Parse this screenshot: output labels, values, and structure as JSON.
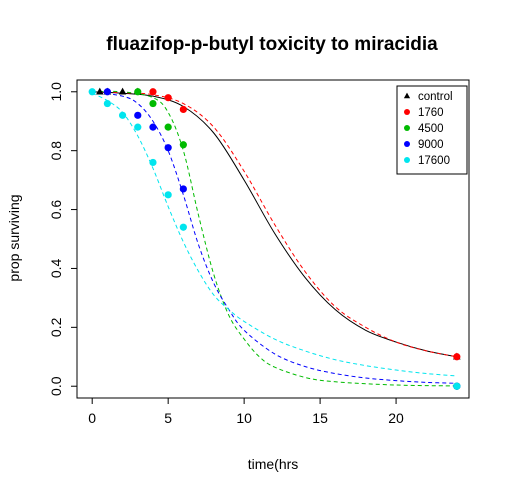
{
  "chart_data": {
    "type": "scatter",
    "title": "fluazifop-p-butyl toxicity to miracidia",
    "xlabel": "time(hrs",
    "ylabel": "prop surviving",
    "xlim": [
      -1,
      24.8
    ],
    "ylim": [
      -0.04,
      1.04
    ],
    "xticks": [
      0,
      5,
      10,
      15,
      20
    ],
    "yticks": [
      0.0,
      0.2,
      0.4,
      0.6,
      0.8,
      1.0
    ],
    "xtick_labels": [
      "0",
      "5",
      "10",
      "15",
      "20"
    ],
    "ytick_labels": [
      "0.0",
      "0.2",
      "0.4",
      "0.6",
      "0.8",
      "1.0"
    ],
    "legend_position": "top-right",
    "grid": false,
    "series": [
      {
        "name": "control",
        "color": "#000000",
        "marker": "triangle",
        "line_style": "solid",
        "points": [
          [
            0.5,
            1.0
          ],
          [
            1.0,
            1.0
          ],
          [
            2.0,
            1.0
          ],
          [
            3.0,
            1.0
          ],
          [
            24.0,
            0.1
          ]
        ],
        "fit_curve": [
          [
            0,
            1.0
          ],
          [
            2,
            0.995
          ],
          [
            4,
            0.985
          ],
          [
            6,
            0.95
          ],
          [
            8,
            0.86
          ],
          [
            10,
            0.7
          ],
          [
            12,
            0.52
          ],
          [
            14,
            0.37
          ],
          [
            16,
            0.26
          ],
          [
            18,
            0.19
          ],
          [
            20,
            0.15
          ],
          [
            22,
            0.12
          ],
          [
            24,
            0.1
          ]
        ]
      },
      {
        "name": "1760",
        "color": "#ff0000",
        "marker": "circle",
        "line_style": "dashed",
        "points": [
          [
            4.0,
            1.0
          ],
          [
            5.0,
            0.98
          ],
          [
            6.0,
            0.94
          ],
          [
            24.0,
            0.1
          ]
        ],
        "fit_curve": [
          [
            0,
            1.0
          ],
          [
            2,
            0.997
          ],
          [
            4,
            0.99
          ],
          [
            6,
            0.96
          ],
          [
            8,
            0.88
          ],
          [
            10,
            0.73
          ],
          [
            12,
            0.55
          ],
          [
            14,
            0.39
          ],
          [
            16,
            0.27
          ],
          [
            18,
            0.2
          ],
          [
            20,
            0.15
          ],
          [
            22,
            0.12
          ],
          [
            24,
            0.1
          ]
        ]
      },
      {
        "name": "4500",
        "color": "#00bb00",
        "marker": "circle",
        "line_style": "dashed",
        "points": [
          [
            3.0,
            1.0
          ],
          [
            4.0,
            0.96
          ],
          [
            5.0,
            0.88
          ],
          [
            6.0,
            0.82
          ],
          [
            24.0,
            0.0
          ]
        ],
        "fit_curve": [
          [
            0,
            1.0
          ],
          [
            2,
            1.0
          ],
          [
            4,
            0.98
          ],
          [
            5,
            0.93
          ],
          [
            6,
            0.8
          ],
          [
            7,
            0.58
          ],
          [
            8,
            0.38
          ],
          [
            9,
            0.24
          ],
          [
            10,
            0.16
          ],
          [
            11,
            0.1
          ],
          [
            12,
            0.065
          ],
          [
            14,
            0.03
          ],
          [
            16,
            0.015
          ],
          [
            20,
            0.004
          ],
          [
            24,
            0.001
          ]
        ]
      },
      {
        "name": "9000",
        "color": "#0000ff",
        "marker": "circle",
        "line_style": "dashed",
        "points": [
          [
            1.0,
            1.0
          ],
          [
            3.0,
            0.92
          ],
          [
            4.0,
            0.88
          ],
          [
            5.0,
            0.81
          ],
          [
            6.0,
            0.67
          ],
          [
            24.0,
            0.0
          ]
        ],
        "fit_curve": [
          [
            0,
            1.0
          ],
          [
            2,
            0.985
          ],
          [
            3,
            0.96
          ],
          [
            4,
            0.9
          ],
          [
            5,
            0.8
          ],
          [
            6,
            0.65
          ],
          [
            7,
            0.48
          ],
          [
            8,
            0.35
          ],
          [
            9,
            0.26
          ],
          [
            10,
            0.19
          ],
          [
            12,
            0.11
          ],
          [
            14,
            0.067
          ],
          [
            16,
            0.043
          ],
          [
            18,
            0.028
          ],
          [
            20,
            0.019
          ],
          [
            22,
            0.013
          ],
          [
            24,
            0.01
          ]
        ]
      },
      {
        "name": "17600",
        "color": "#00e5ee",
        "marker": "circle",
        "line_style": "dashed",
        "points": [
          [
            0.0,
            1.0
          ],
          [
            1.0,
            0.96
          ],
          [
            2.0,
            0.92
          ],
          [
            3.0,
            0.88
          ],
          [
            4.0,
            0.76
          ],
          [
            5.0,
            0.65
          ],
          [
            6.0,
            0.54
          ],
          [
            24.0,
            0.0
          ]
        ],
        "fit_curve": [
          [
            0,
            0.995
          ],
          [
            1,
            0.97
          ],
          [
            2,
            0.93
          ],
          [
            3,
            0.85
          ],
          [
            4,
            0.74
          ],
          [
            5,
            0.61
          ],
          [
            6,
            0.49
          ],
          [
            7,
            0.39
          ],
          [
            8,
            0.31
          ],
          [
            9,
            0.26
          ],
          [
            10,
            0.22
          ],
          [
            12,
            0.16
          ],
          [
            14,
            0.12
          ],
          [
            16,
            0.09
          ],
          [
            18,
            0.07
          ],
          [
            20,
            0.055
          ],
          [
            22,
            0.043
          ],
          [
            24,
            0.035
          ]
        ]
      }
    ]
  }
}
